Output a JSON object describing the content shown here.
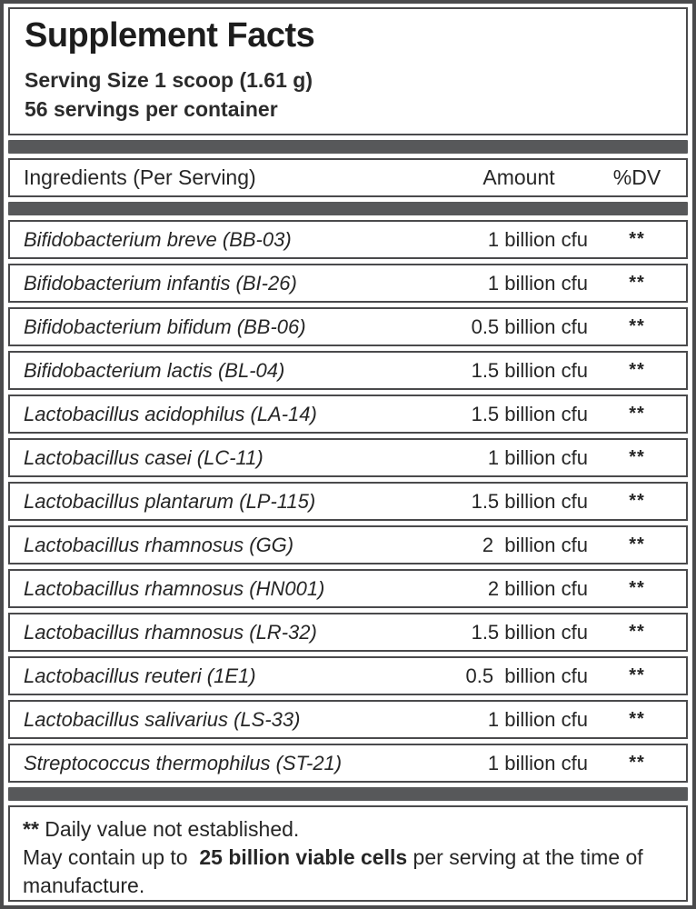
{
  "label": {
    "title": "Supplement Facts",
    "serving_size": "Serving Size 1 scoop (1.61 g)",
    "servings_per_container": "56 servings per container"
  },
  "table": {
    "headers": {
      "ingredient": "Ingredients (Per Serving)",
      "amount": "Amount",
      "dv": "%DV"
    },
    "rows": [
      {
        "ingredient": "Bifidobacterium breve (BB-03)",
        "amount": "1 billion cfu",
        "dv": "**"
      },
      {
        "ingredient": "Bifidobacterium infantis (BI-26)",
        "amount": "1 billion cfu",
        "dv": "**"
      },
      {
        "ingredient": "Bifidobacterium bifidum (BB-06)",
        "amount": "0.5 billion cfu",
        "dv": "**"
      },
      {
        "ingredient": "Bifidobacterium lactis (BL-04)",
        "amount": "1.5 billion cfu",
        "dv": "**"
      },
      {
        "ingredient": "Lactobacillus acidophilus (LA-14)",
        "amount": "1.5 billion cfu",
        "dv": "**"
      },
      {
        "ingredient": "Lactobacillus casei (LC-11)",
        "amount": "1 billion cfu",
        "dv": "**"
      },
      {
        "ingredient": "Lactobacillus plantarum (LP-115)",
        "amount": "1.5 billion cfu",
        "dv": "**"
      },
      {
        "ingredient": "Lactobacillus rhamnosus (GG)",
        "amount": "2  billion cfu",
        "dv": "**"
      },
      {
        "ingredient": "Lactobacillus rhamnosus (HN001)",
        "amount": "2 billion cfu",
        "dv": "**"
      },
      {
        "ingredient": "Lactobacillus rhamnosus (LR-32)",
        "amount": "1.5 billion cfu",
        "dv": "**"
      },
      {
        "ingredient": "Lactobacillus reuteri (1E1)",
        "amount": "0.5  billion cfu",
        "dv": "**"
      },
      {
        "ingredient": "Lactobacillus salivarius (LS-33)",
        "amount": "1 billion cfu",
        "dv": "**"
      },
      {
        "ingredient": "Streptococcus thermophilus (ST-21)",
        "amount": "1 billion cfu",
        "dv": "**"
      }
    ]
  },
  "footnotes": {
    "line1_marker": "**",
    "line1_text": " Daily value not established.",
    "line2_prefix": "May contain up to  ",
    "line2_bold": "25 billion viable cells",
    "line2_suffix": " per serving at the time of manufacture."
  },
  "colors": {
    "divider_bar": "#57585a",
    "border": "#4a4a4c",
    "text": "#262626"
  }
}
